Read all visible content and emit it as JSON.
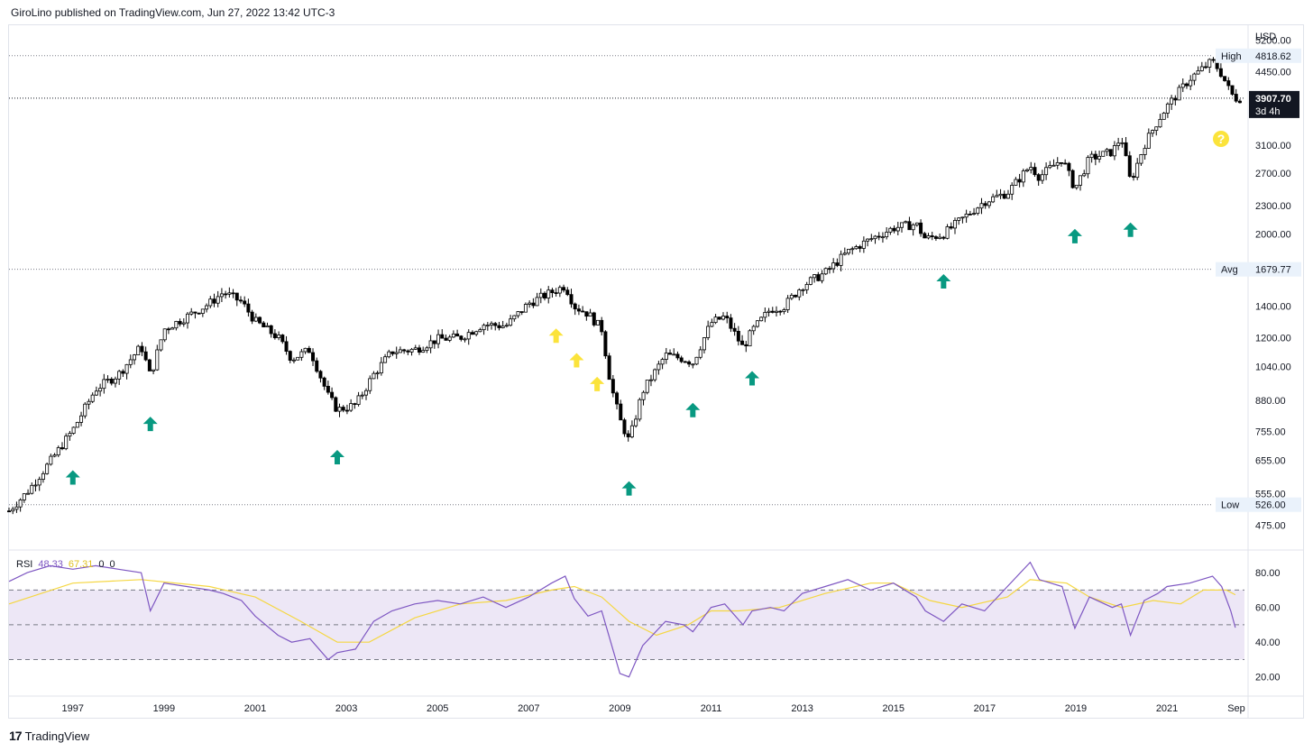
{
  "header": {
    "published": "GiroLino published on TradingView.com, Jun 27, 2022 13:42 UTC-3"
  },
  "footer": {
    "logo": "17",
    "brand": "TradingView"
  },
  "price_axis": {
    "currency": "USD",
    "ticks": [
      "5200.00",
      "4450.00",
      "3100.00",
      "2700.00",
      "2300.00",
      "2000.00",
      "1400.00",
      "1200.00",
      "1040.00",
      "880.00",
      "755.00",
      "655.00",
      "555.00",
      "475.00"
    ],
    "high_label": "High",
    "high_value": "4818.62",
    "avg_label": "Avg",
    "avg_value": "1679.77",
    "low_label": "Low",
    "low_value": "526.00",
    "last_price": "3907.70",
    "countdown": "3d 4h"
  },
  "rsi": {
    "label": "RSI",
    "value": "48.33",
    "ma_value": "67.31",
    "extra1": "0",
    "extra2": "0",
    "ticks": [
      "80.00",
      "60.00",
      "40.00",
      "20.00"
    ]
  },
  "time_axis": {
    "ticks": [
      "1997",
      "1999",
      "2001",
      "2003",
      "2005",
      "2007",
      "2009",
      "2011",
      "2013",
      "2015",
      "2017",
      "2019",
      "2021",
      "Sep"
    ]
  },
  "colors": {
    "up_arrow": "#089981",
    "caution_arrow": "#fbe33b",
    "rsi_line": "#7e57c2",
    "rsi_ma": "#f5d742",
    "rsi_band": "#ede7f6",
    "candle": "#000000"
  },
  "question_mark": "?",
  "chart_data": [
    {
      "type": "candlestick",
      "title": "",
      "y_scale": "log",
      "ylim": [
        430,
        5600
      ],
      "xlim": [
        1995.6,
        2022.7
      ],
      "x_ticks": [
        1997,
        1999,
        2001,
        2003,
        2005,
        2007,
        2009,
        2011,
        2013,
        2015,
        2017,
        2019,
        2021
      ],
      "reference_lines": {
        "high": 4818.62,
        "avg": 1679.77,
        "low": 526.0,
        "last": 3907.7
      },
      "series": [
        {
          "x": [
            1995.6,
            1996.0,
            1996.5,
            1997.0,
            1997.5,
            1998.0,
            1998.5,
            1998.7,
            1999.0,
            1999.5,
            2000.0,
            2000.3,
            2000.7,
            2001.0,
            2001.5,
            2001.8,
            2002.2,
            2002.6,
            2002.8,
            2003.2,
            2003.6,
            2004.0,
            2004.5,
            2005.0,
            2005.5,
            2006.0,
            2006.5,
            2007.0,
            2007.5,
            2007.8,
            2008.0,
            2008.3,
            2008.6,
            2008.8,
            2009.0,
            2009.2,
            2009.5,
            2010.0,
            2010.4,
            2010.6,
            2011.0,
            2011.3,
            2011.7,
            2011.9,
            2012.3,
            2012.6,
            2013.0,
            2013.5,
            2014.0,
            2014.5,
            2015.0,
            2015.5,
            2015.7,
            2016.1,
            2016.5,
            2017.0,
            2017.5,
            2018.0,
            2018.2,
            2018.7,
            2018.98,
            2019.3,
            2019.8,
            2020.0,
            2020.2,
            2020.5,
            2020.8,
            2021.0,
            2021.5,
            2022.0,
            2022.2,
            2022.4,
            2022.5
          ],
          "close": [
            510,
            560,
            650,
            760,
            930,
            1000,
            1150,
            990,
            1250,
            1330,
            1420,
            1500,
            1430,
            1300,
            1200,
            1080,
            1130,
            900,
            840,
            860,
            1000,
            1120,
            1130,
            1190,
            1200,
            1280,
            1270,
            1420,
            1500,
            1550,
            1400,
            1350,
            1250,
            950,
            800,
            720,
            920,
            1100,
            1080,
            1060,
            1290,
            1330,
            1140,
            1240,
            1380,
            1400,
            1550,
            1650,
            1830,
            1950,
            2060,
            2100,
            1950,
            2000,
            2150,
            2350,
            2450,
            2800,
            2650,
            2900,
            2500,
            2900,
            3000,
            3230,
            2580,
            3100,
            3500,
            3750,
            4300,
            4700,
            4400,
            4000,
            3907.7
          ]
        }
      ],
      "annotations": {
        "green_arrows_x": [
          1997.0,
          1998.7,
          2002.8,
          2009.2,
          2010.6,
          2011.9,
          2016.1,
          2018.98,
          2020.2
        ],
        "yellow_arrows_x": [
          2007.6,
          2008.05,
          2008.5
        ]
      }
    },
    {
      "type": "line",
      "title": "",
      "ylim": [
        10,
        92
      ],
      "y_ticks": [
        80,
        60,
        40,
        20
      ],
      "bands": {
        "upper": 70,
        "middle": 50,
        "lower": 30
      },
      "series": [
        {
          "name": "RSI",
          "x": [
            1995.6,
            1996.0,
            1996.5,
            1997.0,
            1997.5,
            1998.0,
            1998.5,
            1998.7,
            1999.0,
            1999.5,
            2000.0,
            2000.3,
            2000.7,
            2001.0,
            2001.5,
            2001.8,
            2002.2,
            2002.6,
            2002.8,
            2003.2,
            2003.6,
            2004.0,
            2004.5,
            2005.0,
            2005.5,
            2006.0,
            2006.5,
            2007.0,
            2007.5,
            2007.8,
            2008.0,
            2008.3,
            2008.6,
            2008.8,
            2009.0,
            2009.2,
            2009.5,
            2010.0,
            2010.4,
            2010.6,
            2011.0,
            2011.3,
            2011.7,
            2011.9,
            2012.3,
            2012.6,
            2013.0,
            2013.5,
            2014.0,
            2014.5,
            2015.0,
            2015.5,
            2015.7,
            2016.1,
            2016.5,
            2017.0,
            2017.5,
            2018.0,
            2018.2,
            2018.7,
            2018.98,
            2019.3,
            2019.8,
            2020.0,
            2020.2,
            2020.5,
            2020.8,
            2021.0,
            2021.5,
            2022.0,
            2022.2,
            2022.4,
            2022.5
          ],
          "values": [
            75,
            80,
            84,
            82,
            84,
            82,
            80,
            58,
            74,
            72,
            70,
            68,
            64,
            55,
            44,
            40,
            42,
            30,
            34,
            36,
            52,
            58,
            62,
            64,
            62,
            66,
            60,
            66,
            74,
            78,
            65,
            55,
            58,
            40,
            22,
            20,
            38,
            52,
            50,
            46,
            60,
            62,
            50,
            58,
            60,
            58,
            68,
            72,
            76,
            70,
            74,
            66,
            58,
            52,
            62,
            58,
            72,
            86,
            76,
            72,
            48,
            66,
            60,
            62,
            44,
            64,
            68,
            72,
            74,
            78,
            72,
            58,
            48.33
          ]
        },
        {
          "name": "RSI MA",
          "x": [
            1995.6,
            1997.0,
            1998.5,
            2000.0,
            2001.0,
            2002.0,
            2002.8,
            2003.5,
            2004.5,
            2005.5,
            2006.5,
            2007.5,
            2008.0,
            2008.6,
            2009.2,
            2009.8,
            2010.5,
            2011.0,
            2011.6,
            2012.5,
            2013.5,
            2014.5,
            2015.0,
            2015.8,
            2016.5,
            2017.5,
            2018.0,
            2018.8,
            2019.3,
            2020.0,
            2020.7,
            2021.3,
            2021.8,
            2022.3,
            2022.5
          ],
          "values": [
            62,
            74,
            76,
            72,
            66,
            52,
            40,
            40,
            54,
            62,
            64,
            70,
            72,
            66,
            52,
            44,
            50,
            58,
            58,
            60,
            68,
            74,
            74,
            64,
            60,
            66,
            76,
            74,
            66,
            60,
            64,
            62,
            70,
            70,
            67.31
          ]
        }
      ]
    }
  ]
}
